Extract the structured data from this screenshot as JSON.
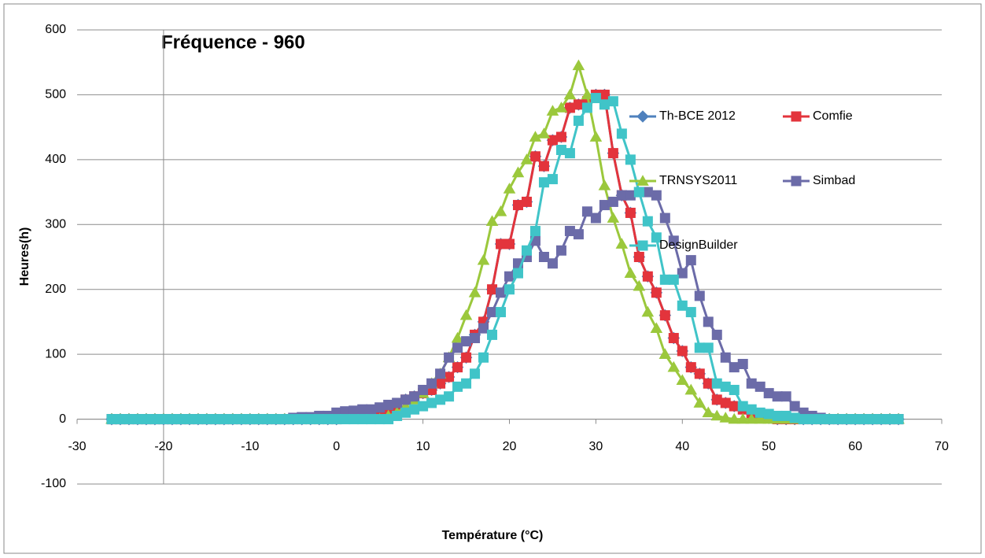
{
  "chart_data": {
    "type": "line",
    "title": "Fréquence  - 960",
    "xlabel": "Température (°C)",
    "ylabel": "Heures(h)",
    "x": [
      -26,
      -25,
      -24,
      -23,
      -22,
      -21,
      -20,
      -19,
      -18,
      -17,
      -16,
      -15,
      -14,
      -13,
      -12,
      -11,
      -10,
      -9,
      -8,
      -7,
      -6,
      -5,
      -4,
      -3,
      -2,
      -1,
      0,
      1,
      2,
      3,
      4,
      5,
      6,
      7,
      8,
      9,
      10,
      11,
      12,
      13,
      14,
      15,
      16,
      17,
      18,
      19,
      20,
      21,
      22,
      23,
      24,
      25,
      26,
      27,
      28,
      29,
      30,
      31,
      32,
      33,
      34,
      35,
      36,
      37,
      38,
      39,
      40,
      41,
      42,
      43,
      44,
      45,
      46,
      47,
      48,
      49,
      50,
      51,
      52,
      53,
      54,
      55,
      56,
      57,
      58,
      59,
      60,
      61,
      62,
      63,
      64,
      65
    ],
    "series": [
      {
        "name": "Th-BCE 2012",
        "color": "#4f81bd",
        "marker": "diamond",
        "values": [
          0,
          0,
          0,
          0,
          0,
          0,
          0,
          0,
          0,
          0,
          0,
          0,
          0,
          0,
          0,
          0,
          0,
          0,
          0,
          0,
          0,
          0,
          0,
          0,
          0,
          0,
          0,
          2,
          3,
          5,
          5,
          8,
          10,
          20,
          30,
          35,
          40,
          45,
          55,
          65,
          80,
          95,
          130,
          150,
          200,
          270,
          270,
          330,
          335,
          405,
          390,
          430,
          435,
          480,
          485,
          490,
          500,
          500,
          410,
          345,
          318,
          250,
          220,
          195,
          160,
          125,
          105,
          80,
          70,
          55,
          30,
          25,
          20,
          15,
          8,
          3,
          2,
          0,
          0,
          0,
          0,
          0,
          0,
          0,
          0,
          0,
          0,
          0,
          0,
          0,
          0,
          0
        ]
      },
      {
        "name": "Comfie",
        "color": "#e3343c",
        "marker": "square",
        "values": [
          0,
          0,
          0,
          0,
          0,
          0,
          0,
          0,
          0,
          0,
          0,
          0,
          0,
          0,
          0,
          0,
          0,
          0,
          0,
          0,
          0,
          0,
          0,
          0,
          0,
          0,
          0,
          2,
          3,
          5,
          5,
          8,
          10,
          20,
          30,
          35,
          40,
          45,
          55,
          65,
          80,
          95,
          130,
          150,
          200,
          270,
          270,
          330,
          335,
          405,
          390,
          430,
          435,
          480,
          485,
          490,
          500,
          500,
          410,
          345,
          318,
          250,
          220,
          195,
          160,
          125,
          105,
          80,
          70,
          55,
          30,
          25,
          20,
          15,
          8,
          3,
          2,
          0,
          0,
          0,
          0,
          0,
          0,
          0,
          0,
          0,
          0,
          0,
          0,
          0,
          0,
          0
        ]
      },
      {
        "name": "TRNSYS2011",
        "color": "#9bc83c",
        "marker": "triangle",
        "values": [
          0,
          0,
          0,
          0,
          0,
          0,
          0,
          0,
          0,
          0,
          0,
          0,
          0,
          0,
          0,
          0,
          0,
          0,
          0,
          0,
          0,
          0,
          0,
          0,
          0,
          0,
          0,
          0,
          0,
          0,
          0,
          0,
          5,
          10,
          20,
          30,
          40,
          55,
          70,
          95,
          125,
          160,
          195,
          245,
          305,
          320,
          355,
          380,
          400,
          435,
          440,
          475,
          480,
          500,
          545,
          500,
          435,
          360,
          310,
          270,
          225,
          205,
          165,
          140,
          100,
          80,
          60,
          45,
          25,
          10,
          5,
          2,
          0,
          0,
          0,
          0,
          0,
          0,
          0,
          0,
          0,
          0,
          0,
          0,
          0,
          0,
          0,
          0,
          0,
          0,
          0,
          0
        ]
      },
      {
        "name": "Simbad",
        "color": "#6b6ba8",
        "marker": "square",
        "values": [
          0,
          0,
          0,
          0,
          0,
          0,
          0,
          0,
          0,
          0,
          0,
          0,
          0,
          0,
          0,
          0,
          0,
          0,
          0,
          0,
          0,
          2,
          3,
          3,
          5,
          5,
          10,
          12,
          13,
          15,
          15,
          18,
          22,
          25,
          30,
          35,
          45,
          55,
          70,
          95,
          110,
          120,
          125,
          140,
          165,
          195,
          220,
          240,
          250,
          275,
          250,
          240,
          260,
          290,
          285,
          320,
          310,
          330,
          335,
          345,
          345,
          350,
          350,
          345,
          310,
          275,
          225,
          245,
          190,
          150,
          130,
          95,
          80,
          85,
          55,
          50,
          40,
          35,
          35,
          20,
          10,
          5,
          2,
          0,
          0,
          0,
          0,
          0,
          0,
          0,
          0,
          0
        ]
      },
      {
        "name": "DesignBuilder",
        "color": "#40c4c8",
        "marker": "square",
        "values": [
          0,
          0,
          0,
          0,
          0,
          0,
          0,
          0,
          0,
          0,
          0,
          0,
          0,
          0,
          0,
          0,
          0,
          0,
          0,
          0,
          0,
          0,
          0,
          0,
          0,
          0,
          0,
          0,
          0,
          0,
          0,
          0,
          0,
          5,
          10,
          15,
          20,
          25,
          30,
          35,
          50,
          55,
          70,
          95,
          130,
          165,
          200,
          225,
          260,
          290,
          365,
          370,
          415,
          410,
          460,
          480,
          495,
          485,
          490,
          440,
          400,
          350,
          305,
          280,
          215,
          215,
          175,
          165,
          110,
          110,
          55,
          50,
          45,
          20,
          15,
          10,
          8,
          5,
          5,
          2,
          0,
          0,
          0,
          0,
          0,
          0,
          0,
          0,
          0,
          0,
          0,
          0
        ]
      }
    ],
    "xlim": [
      -30,
      70
    ],
    "xticks": [
      -30,
      -20,
      -10,
      0,
      10,
      20,
      30,
      40,
      50,
      60,
      70
    ],
    "ylim": [
      -100,
      600
    ],
    "yticks": [
      -100,
      0,
      100,
      200,
      300,
      400,
      500,
      600
    ],
    "y_axis_at": -20,
    "grid": true
  }
}
